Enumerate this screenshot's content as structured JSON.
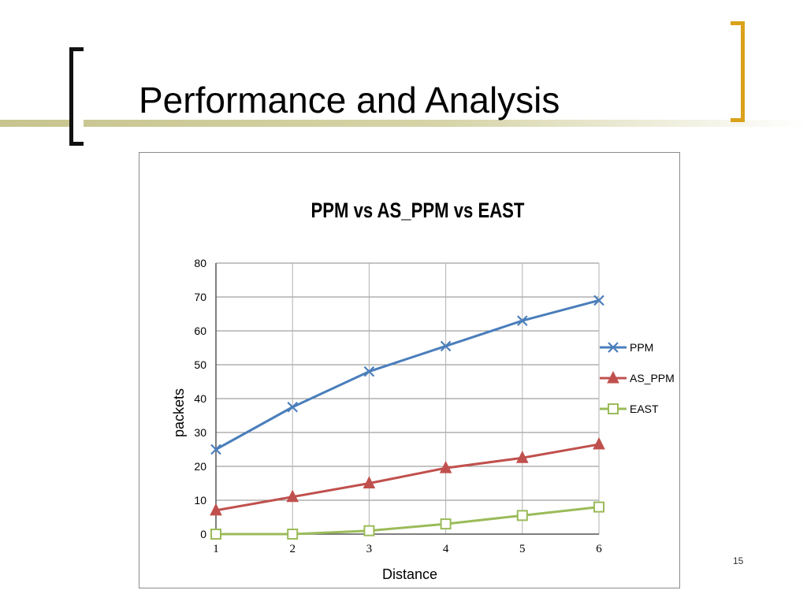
{
  "slide": {
    "title": "Performance and Analysis",
    "page_number": "15"
  },
  "colors": {
    "bracket_left": "#111111",
    "bracket_right": "#d9a21b",
    "accent_line": "#c7c48e"
  },
  "chart_data": {
    "type": "line",
    "title": "PPM vs AS_PPM vs EAST",
    "xlabel": "Distance",
    "ylabel": "packets",
    "x": [
      1,
      2,
      3,
      4,
      5,
      6
    ],
    "ylim": [
      0,
      80
    ],
    "yticks": [
      0,
      10,
      20,
      30,
      40,
      50,
      60,
      70,
      80
    ],
    "grid": true,
    "legend_position": "right",
    "series": [
      {
        "name": "PPM",
        "color": "#4a7ebb",
        "marker": "x",
        "values": [
          25,
          37.5,
          48,
          55.5,
          63,
          69
        ]
      },
      {
        "name": "AS_PPM",
        "color": "#c0504d",
        "marker": "triangle",
        "values": [
          7,
          11,
          15,
          19.5,
          22.5,
          26.5
        ]
      },
      {
        "name": "EAST",
        "color": "#9bbb59",
        "marker": "square",
        "values": [
          0,
          0,
          1,
          3,
          5.5,
          8
        ]
      }
    ]
  }
}
